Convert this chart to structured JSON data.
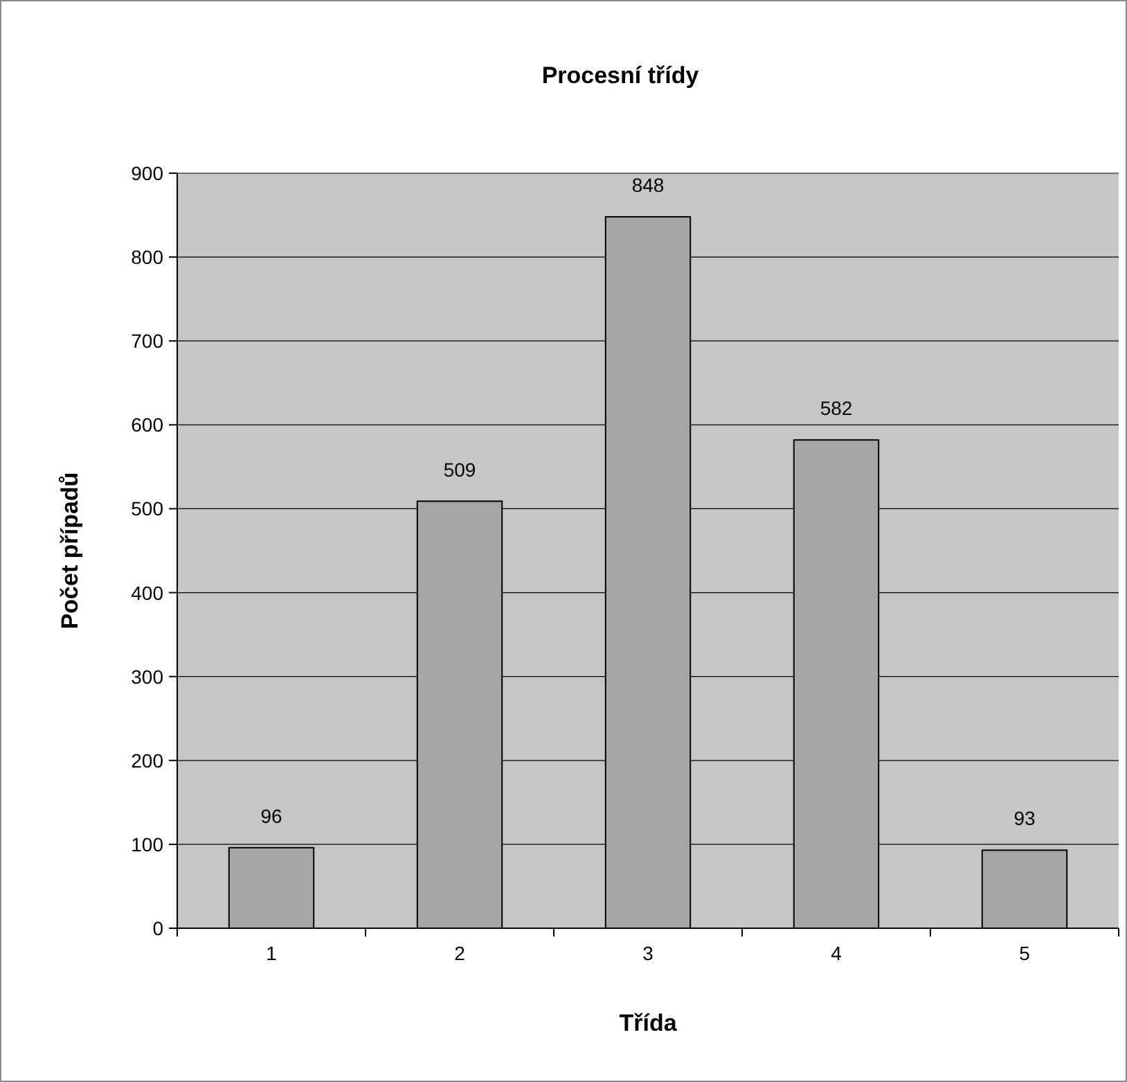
{
  "chart_data": {
    "type": "bar",
    "title": "Procesní třídy",
    "xlabel": "Třída",
    "ylabel": "Počet případů",
    "categories": [
      "1",
      "2",
      "3",
      "4",
      "5"
    ],
    "values": [
      96,
      509,
      848,
      582,
      93
    ],
    "color": "#a6a6a6",
    "ylim": [
      0,
      900
    ],
    "yticks": [
      0,
      100,
      200,
      300,
      400,
      500,
      600,
      700,
      800,
      900
    ],
    "grid": "y",
    "data_labels": true
  }
}
